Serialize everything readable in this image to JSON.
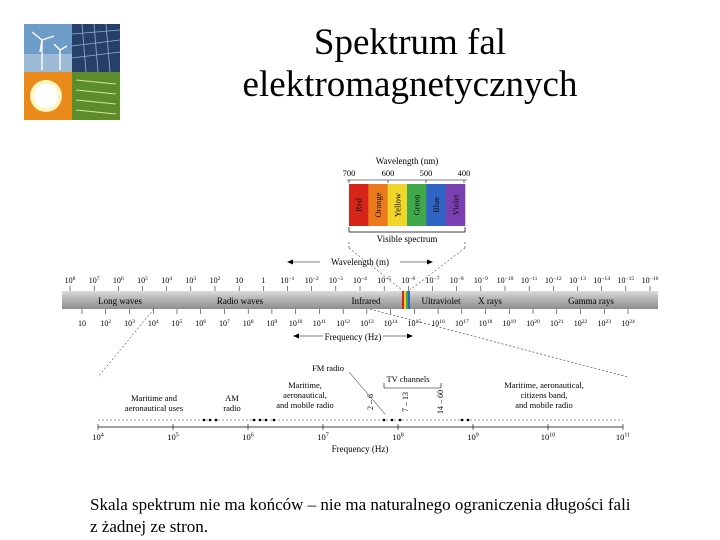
{
  "slide": {
    "title_line1": "Spektrum fal",
    "title_line2": "elektromagnetycznych",
    "caption_line1": "Skala spektrum nie ma końców – nie ma naturalnego ograniczenia długości fali",
    "caption_line2": "z żadnej ze stron."
  },
  "logo": {
    "icon": "renewable-energy-collage-icon"
  },
  "visible": {
    "axis_label": "Wavelength (nm)",
    "ticks": [
      "700",
      "600",
      "500",
      "400"
    ],
    "bands": [
      {
        "label": "Red",
        "color": "#d62418"
      },
      {
        "label": "Orange",
        "color": "#ec7a1c"
      },
      {
        "label": "Yellow",
        "color": "#f0d62a"
      },
      {
        "label": "Green",
        "color": "#3fa84a"
      },
      {
        "label": "Blue",
        "color": "#2f63c4"
      },
      {
        "label": "Violet",
        "color": "#7a3fb0"
      }
    ],
    "bracket_label": "Visible spectrum"
  },
  "wavelength": {
    "axis_label": "Wavelength (m)",
    "ticks": [
      {
        "base": "10",
        "exp": "8"
      },
      {
        "base": "10",
        "exp": "7"
      },
      {
        "base": "10",
        "exp": "6"
      },
      {
        "base": "10",
        "exp": "5"
      },
      {
        "base": "10",
        "exp": "4"
      },
      {
        "base": "10",
        "exp": "3"
      },
      {
        "base": "10",
        "exp": "2"
      },
      {
        "base": "10",
        "exp": ""
      },
      {
        "base": "1",
        "exp": ""
      },
      {
        "base": "10",
        "exp": "−1"
      },
      {
        "base": "10",
        "exp": "−2"
      },
      {
        "base": "10",
        "exp": "−3"
      },
      {
        "base": "10",
        "exp": "−4"
      },
      {
        "base": "10",
        "exp": "−5"
      },
      {
        "base": "10",
        "exp": "−6"
      },
      {
        "base": "10",
        "exp": "−7"
      },
      {
        "base": "10",
        "exp": "−8"
      },
      {
        "base": "10",
        "exp": "−9"
      },
      {
        "base": "10",
        "exp": "−10"
      },
      {
        "base": "10",
        "exp": "−11"
      },
      {
        "base": "10",
        "exp": "−12"
      },
      {
        "base": "10",
        "exp": "−13"
      },
      {
        "base": "10",
        "exp": "−14"
      },
      {
        "base": "10",
        "exp": "−15"
      },
      {
        "base": "10",
        "exp": "−16"
      }
    ]
  },
  "spectrum_bar": {
    "regions": [
      "Long waves",
      "Radio waves",
      "Infrared",
      "Ultraviolet",
      "X rays",
      "Gamma rays"
    ]
  },
  "frequency": {
    "axis_label": "Frequency (Hz)",
    "ticks": [
      {
        "base": "10",
        "exp": ""
      },
      {
        "base": "10",
        "exp": "2"
      },
      {
        "base": "10",
        "exp": "3"
      },
      {
        "base": "10",
        "exp": "4"
      },
      {
        "base": "10",
        "exp": "5"
      },
      {
        "base": "10",
        "exp": "6"
      },
      {
        "base": "10",
        "exp": "7"
      },
      {
        "base": "10",
        "exp": "8"
      },
      {
        "base": "10",
        "exp": "9"
      },
      {
        "base": "10",
        "exp": "10"
      },
      {
        "base": "10",
        "exp": "11"
      },
      {
        "base": "10",
        "exp": "12"
      },
      {
        "base": "10",
        "exp": "13"
      },
      {
        "base": "10",
        "exp": "14"
      },
      {
        "base": "10",
        "exp": "15"
      },
      {
        "base": "10",
        "exp": "16"
      },
      {
        "base": "10",
        "exp": "17"
      },
      {
        "base": "10",
        "exp": "18"
      },
      {
        "base": "10",
        "exp": "19"
      },
      {
        "base": "10",
        "exp": "20"
      },
      {
        "base": "10",
        "exp": "21"
      },
      {
        "base": "10",
        "exp": "22"
      },
      {
        "base": "10",
        "exp": "23"
      },
      {
        "base": "10",
        "exp": "24"
      }
    ]
  },
  "radio_detail": {
    "uses": [
      {
        "lines": [
          "Maritime and",
          "aeronautical uses"
        ]
      },
      {
        "lines": [
          "AM",
          "radio"
        ]
      },
      {
        "lines": [
          "Maritime,",
          "aeronautical,",
          "and mobile radio"
        ]
      },
      {
        "lines": [
          "Maritime, aeronautical,",
          "citizens band,",
          "and mobile radio"
        ]
      }
    ],
    "fm_label": "FM radio",
    "tv_label": "TV channels",
    "channels": [
      "2 – 6",
      "7 – 13",
      "14 – 60"
    ],
    "axis_label": "Frequency (Hz)",
    "ticks": [
      {
        "base": "10",
        "exp": "4"
      },
      {
        "base": "10",
        "exp": "5"
      },
      {
        "base": "10",
        "exp": "6"
      },
      {
        "base": "10",
        "exp": "7"
      },
      {
        "base": "10",
        "exp": "8"
      },
      {
        "base": "10",
        "exp": "9"
      },
      {
        "base": "10",
        "exp": "10"
      },
      {
        "base": "10",
        "exp": "11"
      }
    ]
  }
}
